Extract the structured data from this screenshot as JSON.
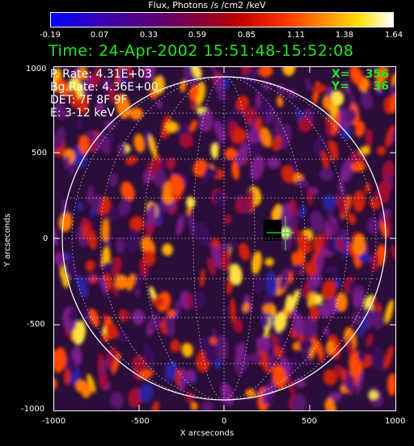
{
  "colorbar": {
    "title": "Flux, Photons /s /cm2 /keV",
    "ticks": [
      "-0.19",
      "0.07",
      "0.33",
      "0.59",
      "0.85",
      "1.11",
      "1.38",
      "1.64"
    ]
  },
  "header": {
    "time": "Time: 24-Apr-2002 15:51:48-15:52:08"
  },
  "info": {
    "p_rate": "P. Rate:  4.31E+03",
    "bg_rate": "Bg.Rate:  4.36E+00",
    "det": "DET: 7F 8F 9F",
    "energy": "E: 3-12 keV"
  },
  "cursor": {
    "x_label": "X=",
    "x_value": "356",
    "y_label": "Y=",
    "y_value": "36"
  },
  "axes": {
    "xlabel": "X arcseconds",
    "ylabel": "Y arcseconds",
    "xticks": [
      "-1000",
      "-500",
      "0",
      "500",
      "1000"
    ],
    "yticks": [
      "1000",
      "500",
      "0",
      "-500",
      "-1000"
    ]
  },
  "colors": {
    "cursor": "#22e81c",
    "limb": "#ffffff"
  }
}
